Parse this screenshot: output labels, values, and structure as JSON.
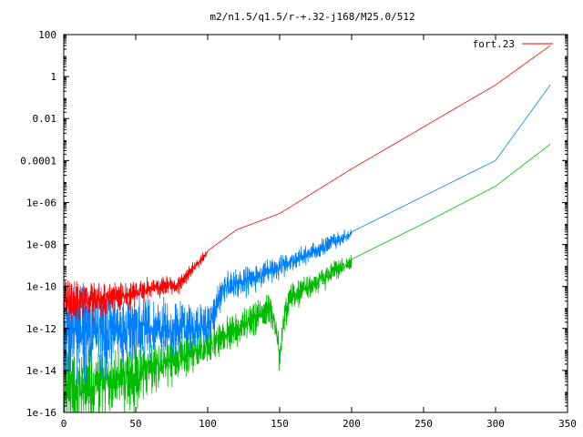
{
  "chart_data": {
    "type": "line",
    "title": "m2/n1.5/q1.5/r-+.32-j168/M25.0/512",
    "xlabel": "",
    "ylabel": "",
    "xlim": [
      0,
      350
    ],
    "ylim": [
      1e-16,
      100
    ],
    "yscale": "log",
    "grid": false,
    "legend_position": "top-right",
    "x_ticks": [
      0,
      50,
      100,
      150,
      200,
      250,
      300,
      350
    ],
    "x_tick_labels": [
      "0",
      "50",
      "100",
      "150",
      "200",
      "250",
      "300",
      "350"
    ],
    "y_ticks": [
      1e-16,
      1e-14,
      1e-12,
      1e-10,
      1e-08,
      1e-06,
      0.0001,
      0.01,
      1,
      100
    ],
    "y_tick_labels": [
      "1e-16",
      "1e-14",
      "1e-12",
      "1e-10",
      "1e-08",
      "1e-06",
      "0.0001",
      "0.01",
      "1",
      "100"
    ],
    "series": [
      {
        "name": "fort.23",
        "color": "#ff0000",
        "x": [
          0,
          20,
          40,
          50,
          60,
          80,
          100,
          120,
          150,
          200,
          250,
          300,
          338
        ],
        "y": [
          3e-11,
          3e-11,
          4e-11,
          6e-11,
          1e-10,
          1.5e-10,
          5e-09,
          5e-08,
          3e-07,
          4e-05,
          0.004,
          0.4,
          30
        ],
        "noise": [
          [
            0,
            55,
            3
          ],
          [
            55,
            100,
            1.5
          ]
        ]
      },
      {
        "color": "#0080ff",
        "x": [
          0,
          50,
          100,
          110,
          150,
          200,
          250,
          300,
          338
        ],
        "y": [
          2e-12,
          2e-12,
          2e-12,
          1e-10,
          1e-09,
          4e-08,
          2e-06,
          0.0001,
          0.4
        ],
        "noise": [
          [
            0,
            110,
            6
          ],
          [
            110,
            200,
            2
          ]
        ]
      },
      {
        "color": "#00bb00",
        "x": [
          0,
          20,
          50,
          100,
          110,
          150,
          200,
          250,
          300,
          338
        ],
        "y": [
          3e-15,
          4e-15,
          1e-14,
          2e-13,
          5e-13,
          2e-11,
          2e-09,
          1e-07,
          6e-06,
          0.0006
        ],
        "noise": [
          [
            0,
            110,
            5
          ],
          [
            110,
            200,
            2.5
          ]
        ],
        "dip": {
          "x": 150,
          "y": 5e-14
        }
      }
    ]
  }
}
